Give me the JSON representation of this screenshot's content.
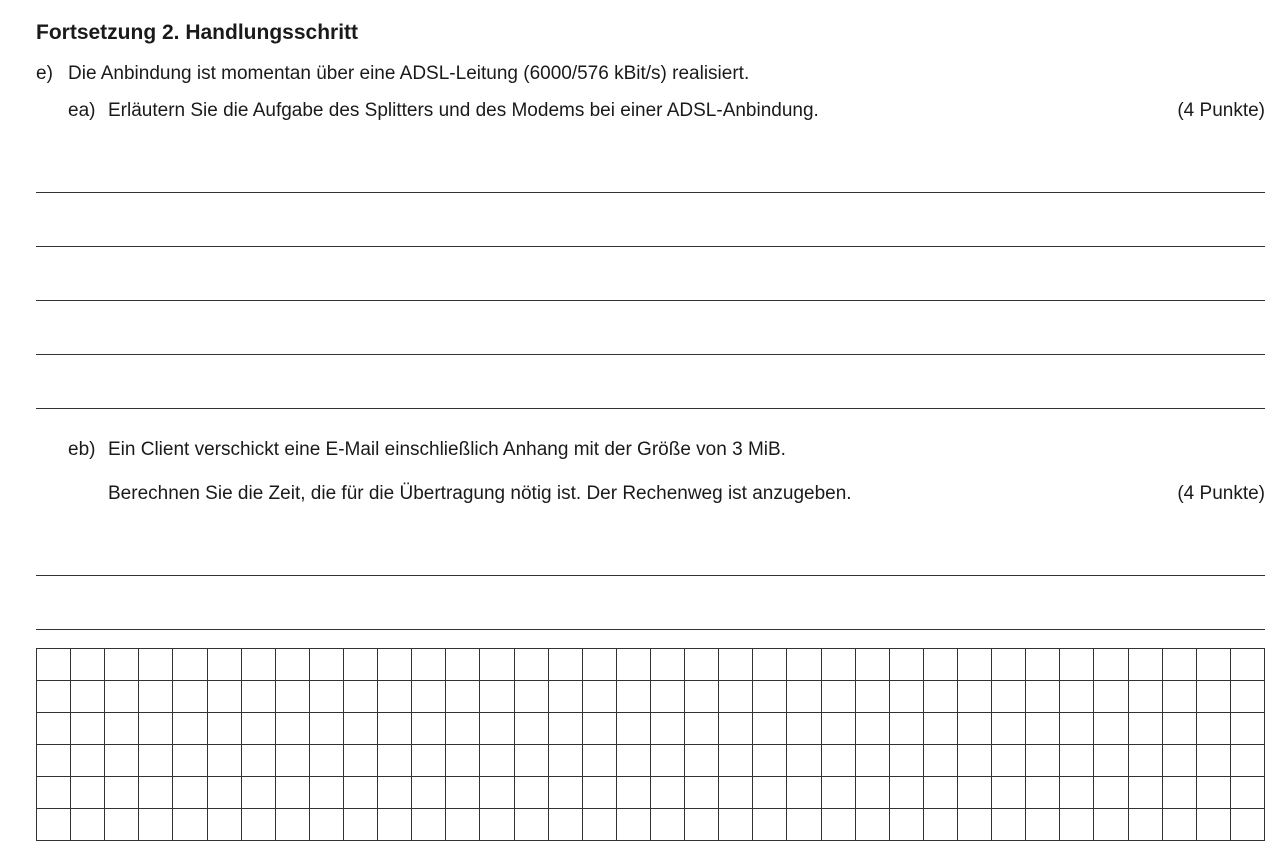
{
  "title": "Fortsetzung 2. Handlungsschritt",
  "item_e": {
    "label": "e)",
    "text": "Die Anbindung ist momentan über eine ADSL-Leitung (6000/576 kBit/s) realisiert."
  },
  "sub_ea": {
    "label": "ea)",
    "text": "Erläutern Sie die Aufgabe des Splitters und des Modems bei einer ADSL-Anbindung.",
    "points": "(4 Punkte)",
    "answer_lines": 5
  },
  "sub_eb": {
    "label": "eb)",
    "line1": "Ein Client verschickt eine E-Mail einschließlich Anhang mit der Größe von 3 MiB.",
    "line2": "Berechnen Sie die Zeit, die für die Übertragung nötig ist. Der Rechenweg ist anzugeben.",
    "points": "(4 Punkte)",
    "answer_lines": 2
  },
  "grid": {
    "rows": 6,
    "cols": 36
  }
}
